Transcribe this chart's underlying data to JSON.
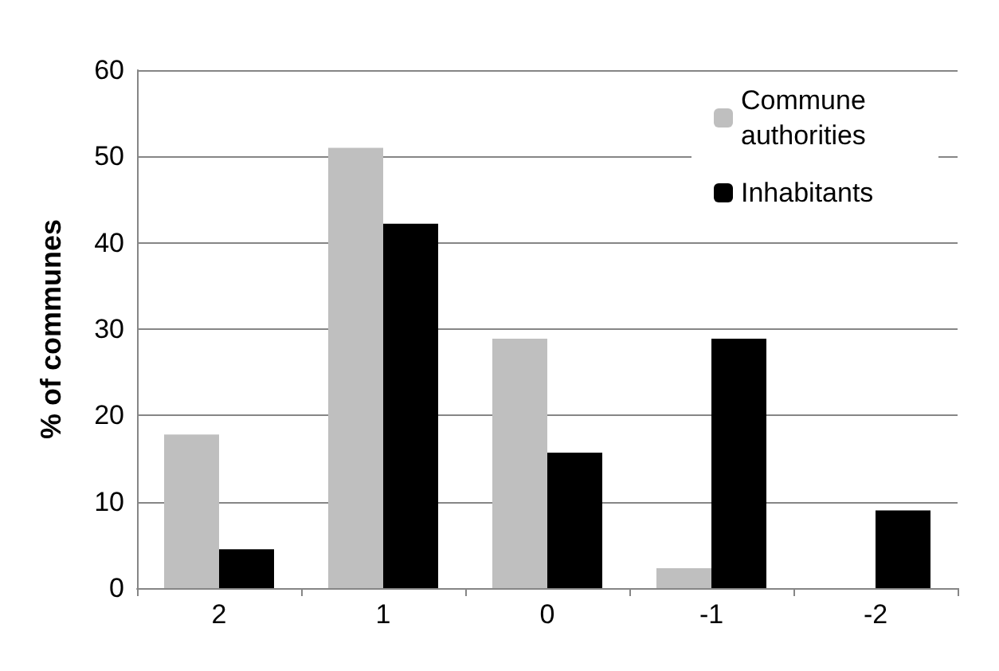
{
  "chart_data": {
    "type": "bar",
    "ylabel": "% of communes",
    "categories": [
      "2",
      "1",
      "0",
      "-1",
      "-2"
    ],
    "series": [
      {
        "name": "Commune authorities",
        "color": "#bfbfbf",
        "values": [
          17.8,
          51,
          28.9,
          2.3,
          0
        ]
      },
      {
        "name": "Inhabitants",
        "color": "#000000",
        "values": [
          4.5,
          42.2,
          15.7,
          28.9,
          9
        ]
      }
    ],
    "ylim": [
      0,
      60
    ],
    "yticks": [
      0,
      10,
      20,
      30,
      40,
      50,
      60
    ],
    "grid": "y",
    "legend": "top right"
  }
}
